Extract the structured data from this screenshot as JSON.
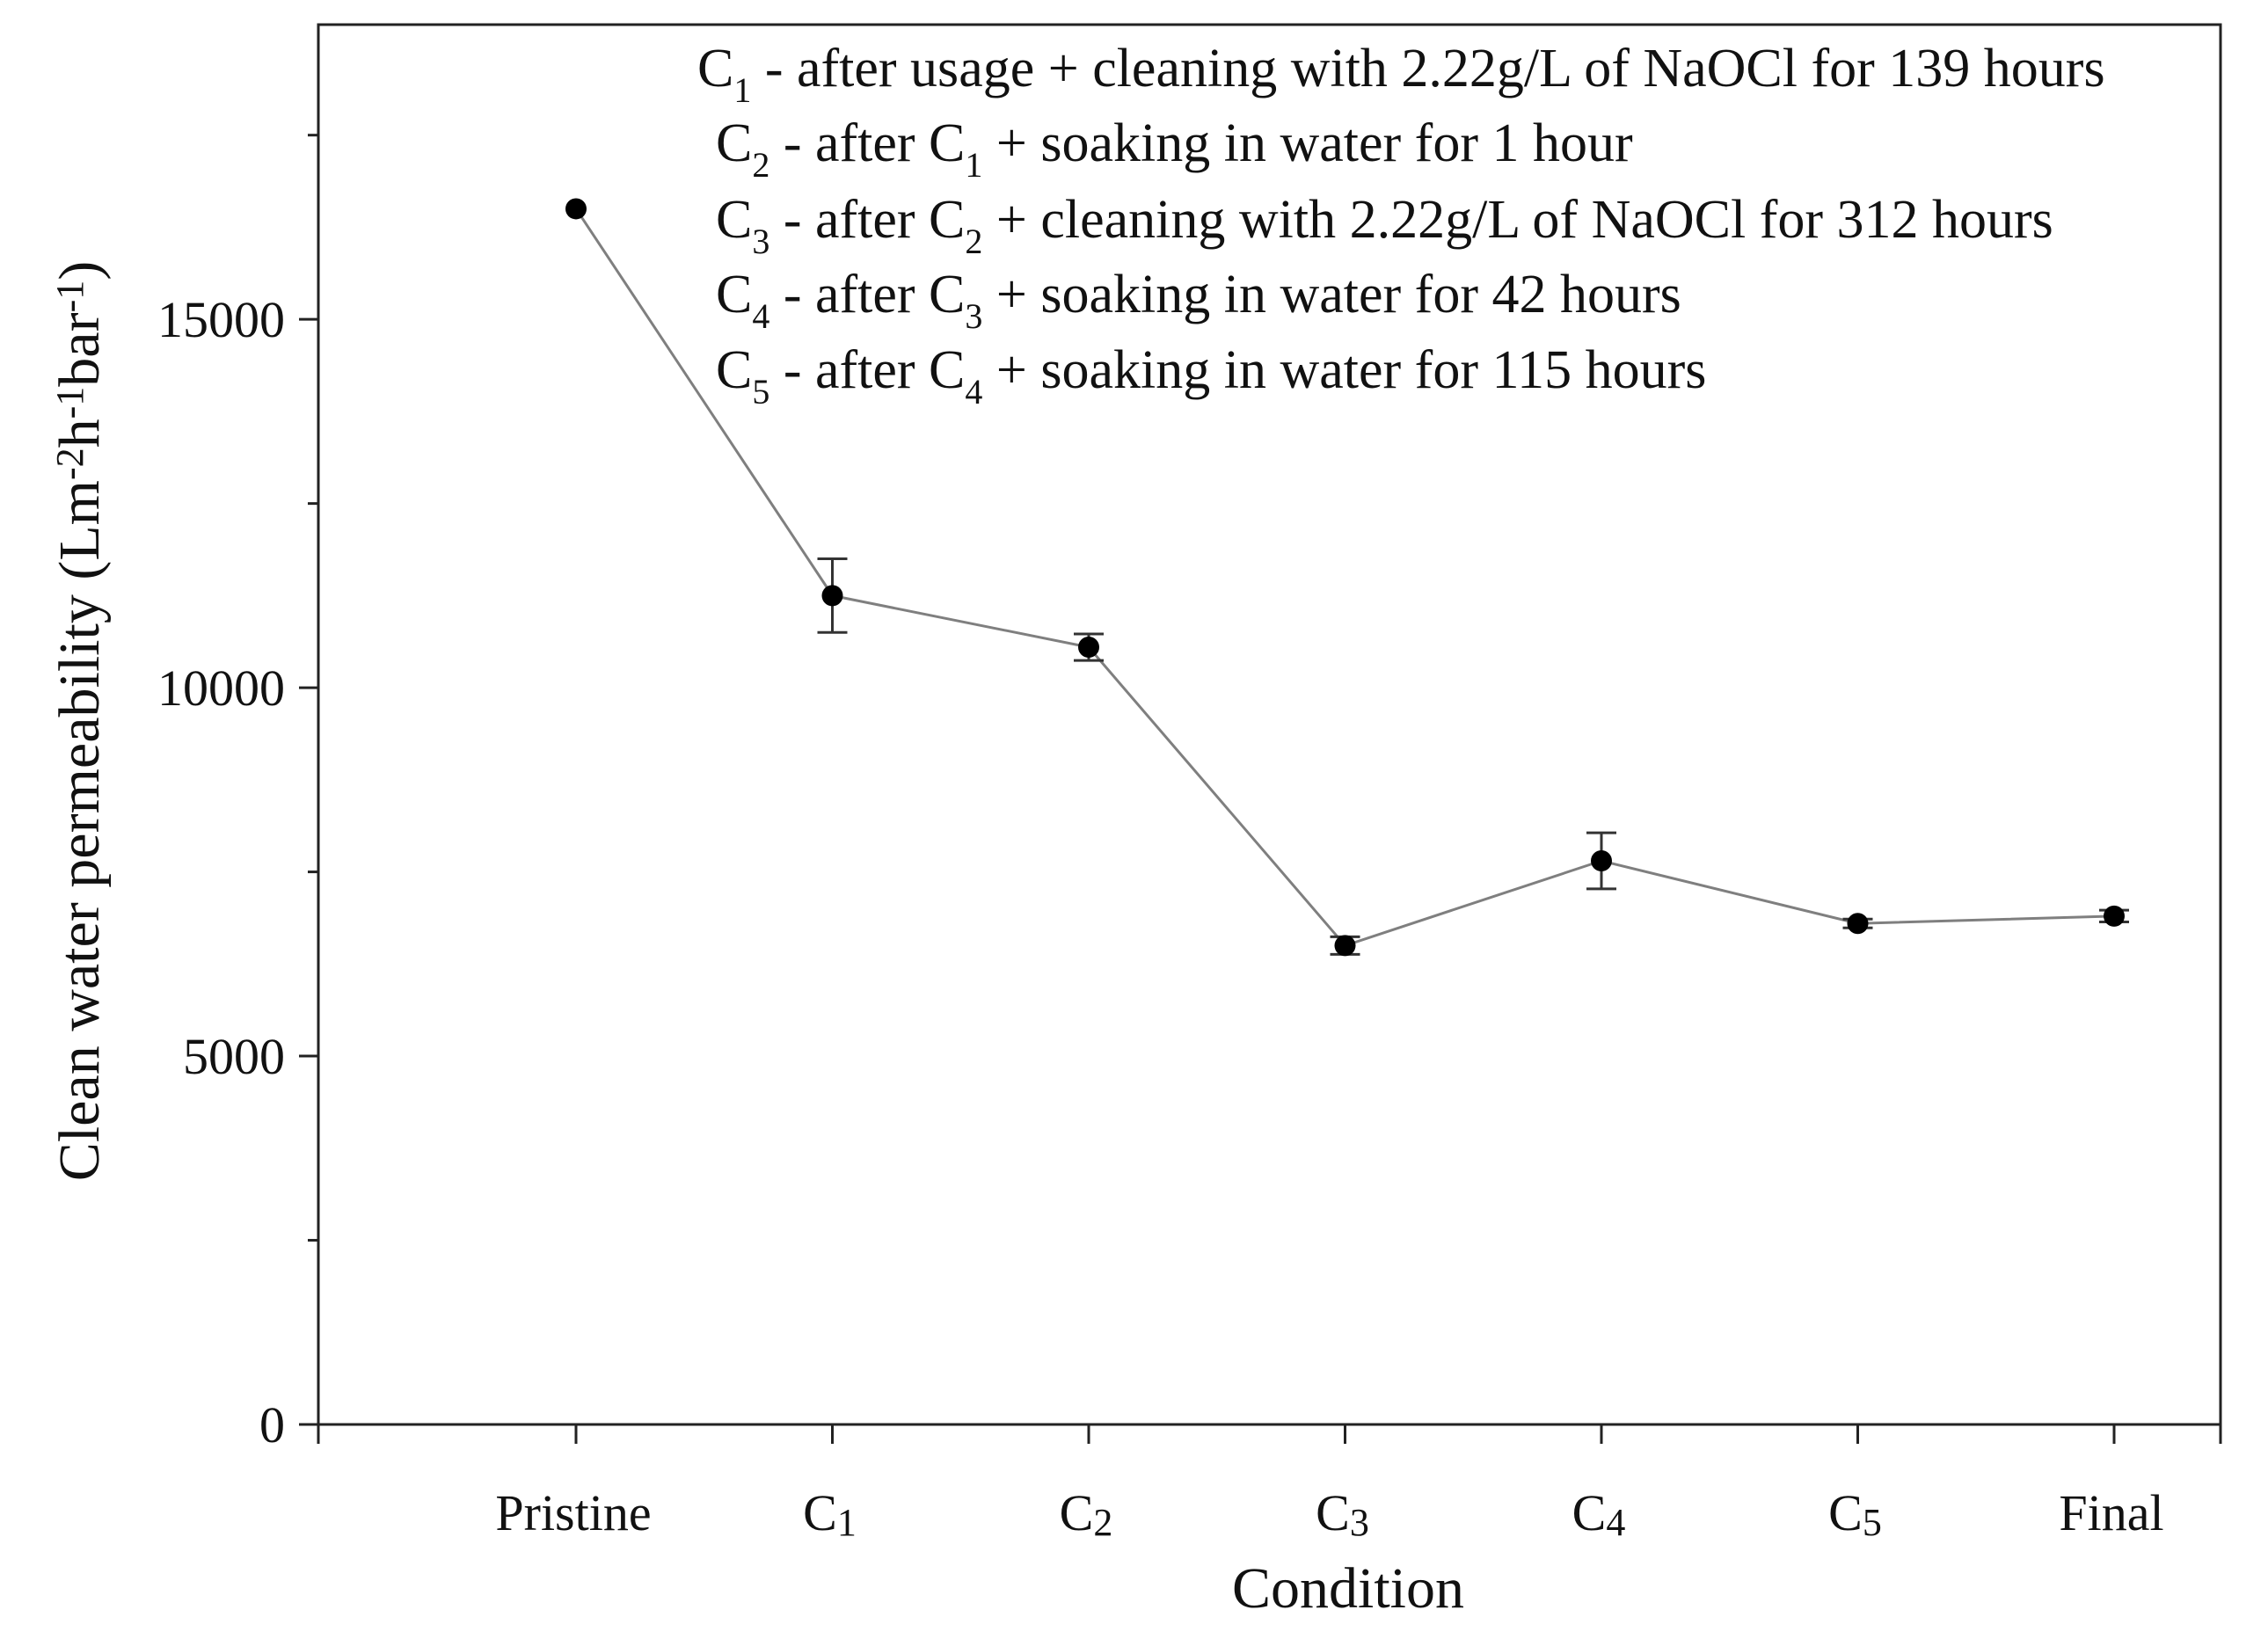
{
  "chart_data": {
    "type": "line",
    "title": "",
    "xlabel": "Condition",
    "ylabel": {
      "text": "Clean water permeability (Lm",
      "parts": [
        "Clean water permeability (Lm",
        "-2",
        "h",
        "-1",
        "bar",
        "-1",
        ")"
      ]
    },
    "categories": [
      {
        "base": "Pristine",
        "sub": ""
      },
      {
        "base": "C",
        "sub": "1"
      },
      {
        "base": "C",
        "sub": "2"
      },
      {
        "base": "C",
        "sub": "3"
      },
      {
        "base": "C",
        "sub": "4"
      },
      {
        "base": "C",
        "sub": "5"
      },
      {
        "base": "Final",
        "sub": ""
      }
    ],
    "values": [
      16500,
      11250,
      10550,
      6500,
      7650,
      6800,
      6900
    ],
    "errors": [
      0,
      500,
      180,
      120,
      380,
      60,
      80
    ],
    "ylim": [
      0,
      19000
    ],
    "yticks_major": [
      0,
      5000,
      10000,
      15000
    ],
    "yticks_labels": [
      "0",
      "5000",
      "10000",
      "15000"
    ],
    "yticks_minor": [
      2500,
      7500,
      12500,
      17500
    ],
    "grid": false,
    "colors": {
      "line": "#7f7f7f",
      "marker": "#000000",
      "axis": "#222222"
    },
    "legend_location": "top-right",
    "annotations": [
      [
        {
          "t": "C"
        },
        {
          "t": "1",
          "sub": true
        },
        {
          "t": " - after usage + cleaning with 2.22g/L of NaOCl for 139 hours"
        }
      ],
      [
        {
          "t": "C"
        },
        {
          "t": "2",
          "sub": true
        },
        {
          "t": " - after C"
        },
        {
          "t": "1",
          "sub": true
        },
        {
          "t": " + soaking in water for 1 hour"
        }
      ],
      [
        {
          "t": "C"
        },
        {
          "t": "3",
          "sub": true
        },
        {
          "t": " - after C"
        },
        {
          "t": "2",
          "sub": true
        },
        {
          "t": " + cleaning with 2.22g/L of NaOCl for 312 hours"
        }
      ],
      [
        {
          "t": "C"
        },
        {
          "t": "4",
          "sub": true
        },
        {
          "t": " - after C"
        },
        {
          "t": "3",
          "sub": true
        },
        {
          "t": " + soaking in water for 42 hours"
        }
      ],
      [
        {
          "t": "C"
        },
        {
          "t": "5",
          "sub": true
        },
        {
          "t": " - after C"
        },
        {
          "t": "4",
          "sub": true
        },
        {
          "t": " + soaking in water for 115 hours"
        }
      ]
    ]
  }
}
